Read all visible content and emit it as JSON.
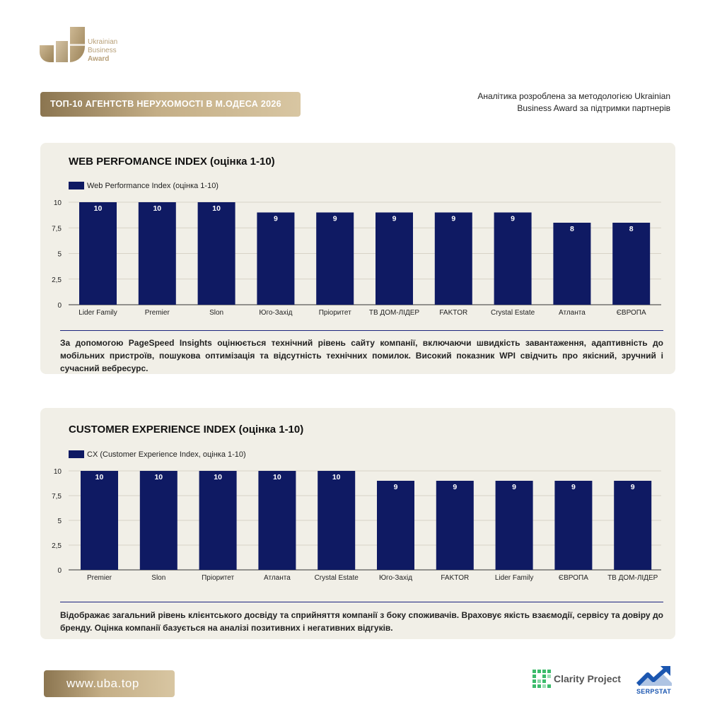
{
  "brand": {
    "logo_line1": "Ukrainian",
    "logo_line2": "Business",
    "logo_line3": "Award",
    "gold": "#b79f77"
  },
  "header": {
    "title": "ТОП-10 АГЕНТСТВ НЕРУХОМОСТІ В М.ОДЕСА 2026",
    "intro": "Аналітика розроблена за методологією Ukrainian Business Award за підтримки партнерів"
  },
  "colors": {
    "bar": "#0f1a63",
    "card_bg": "#f1efe7",
    "accent": "#1a237e"
  },
  "chart_data": [
    {
      "type": "bar",
      "title": "WEB PERFOMANCE INDEX (оцінка 1-10)",
      "legend": "Web Performance Index (оцінка 1-10)",
      "categories": [
        "Lider Family",
        "Premier",
        "Slon",
        "Юго-Захід",
        "Пріоритет",
        "ТВ ДОМ-ЛІДЕР",
        "FAKTOR",
        "Crystal Estate",
        "Атланта",
        "ЄВРОПА"
      ],
      "values": [
        10,
        10,
        10,
        9,
        9,
        9,
        9,
        9,
        8,
        8
      ],
      "ylim": [
        0,
        10
      ],
      "yticks": [
        "0",
        "2,5",
        "5",
        "7,5",
        "10"
      ],
      "grid": true,
      "legend_position": "top-left"
    },
    {
      "type": "bar",
      "title": "CUSTOMER EXPERIENCE INDEX (оцінка 1-10)",
      "legend": "CX (Customer Experience Index, оцінка 1-10)",
      "categories": [
        "Premier",
        "Slon",
        "Пріоритет",
        "Атланта",
        "Crystal Estate",
        "Юго-Захід",
        "FAKTOR",
        "Lider Family",
        "ЄВРОПА",
        "ТВ ДОМ-ЛІДЕР"
      ],
      "values": [
        10,
        10,
        10,
        10,
        10,
        9,
        9,
        9,
        9,
        9
      ],
      "ylim": [
        0,
        10
      ],
      "yticks": [
        "0",
        "2,5",
        "5",
        "7,5",
        "10"
      ],
      "grid": true,
      "legend_position": "top-left"
    }
  ],
  "descriptions": {
    "wpi": "За допомогою PageSpeed Insights оцінюється технічний рівень сайту компанії, включаючи швидкість завантаження, адаптивність до мобільних пристроїв, пошукова оптимізація та відсутність технічних помилок. Високий показник WPI свідчить про якісний, зручний і сучасний вебресурс.",
    "cx": "Відображає загальний рівень клієнтського досвіду та сприйняття компанії з боку споживачів. Враховує якість взаємодії, сервісу та довіру до бренду. Оцінка компанії базується на аналізі позитивних і негативних відгуків."
  },
  "footer": {
    "url": "www.uba.top",
    "partner1": "Clarity Project",
    "partner1_icon": "clarity-grid-icon",
    "partner2": "SERPSTAT",
    "partner2_icon": "serpstat-arrow-icon"
  }
}
